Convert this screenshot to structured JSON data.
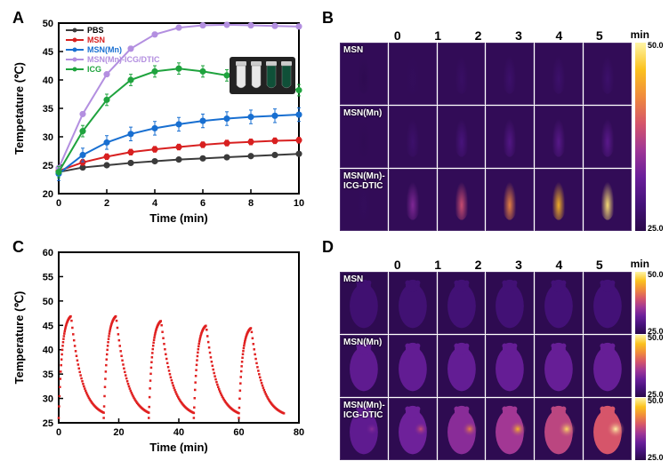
{
  "panelA": {
    "label": "A",
    "type": "line",
    "title": null,
    "xlabel": "Time (min)",
    "ylabel": "Tempetature (℃)",
    "xlim": [
      0,
      10
    ],
    "ylim": [
      20,
      50
    ],
    "xtick_step": 2,
    "ytick_step": 5,
    "label_fontsize": 13,
    "tick_fontsize": 11,
    "background_color": "#ffffff",
    "axis_color": "#000000",
    "axis_width": 2,
    "linewidth": 2,
    "marker": "circle",
    "marker_size": 4,
    "errorbar": true,
    "legend_pos": "upper-left-inside",
    "legend_fontsize": 9,
    "series": [
      {
        "name": "PBS",
        "color": "#3b3b3b",
        "x": [
          0,
          1,
          2,
          3,
          4,
          5,
          6,
          7,
          8,
          9,
          10
        ],
        "y": [
          23.8,
          24.6,
          25.0,
          25.4,
          25.7,
          26.0,
          26.2,
          26.4,
          26.6,
          26.8,
          27.0
        ],
        "err": 0.3
      },
      {
        "name": "MSN",
        "color": "#d82020",
        "x": [
          0,
          1,
          2,
          3,
          4,
          5,
          6,
          7,
          8,
          9,
          10
        ],
        "y": [
          24.0,
          25.5,
          26.5,
          27.3,
          27.8,
          28.2,
          28.6,
          28.9,
          29.1,
          29.3,
          29.4
        ],
        "err": 0.5
      },
      {
        "name": "MSN(Mn)",
        "color": "#186fd1",
        "x": [
          0,
          1,
          2,
          3,
          4,
          5,
          6,
          7,
          8,
          9,
          10
        ],
        "y": [
          23.5,
          26.8,
          29.0,
          30.5,
          31.5,
          32.2,
          32.8,
          33.2,
          33.5,
          33.7,
          33.9
        ],
        "err": 1.2
      },
      {
        "name": "MSN(Mn)-ICG/DTIC",
        "color": "#b38fe0",
        "x": [
          0,
          1,
          2,
          3,
          4,
          5,
          6,
          7,
          8,
          9,
          10
        ],
        "y": [
          24.5,
          34.0,
          41.0,
          45.5,
          48.0,
          49.2,
          49.6,
          49.7,
          49.6,
          49.5,
          49.4
        ],
        "err": 0.4
      },
      {
        "name": "ICG",
        "color": "#1fa33e",
        "x": [
          0,
          1,
          2,
          3,
          4,
          5,
          6,
          7,
          8,
          9,
          10
        ],
        "y": [
          23.8,
          31.0,
          36.5,
          40.0,
          41.5,
          42.0,
          41.5,
          40.8,
          40.0,
          39.0,
          38.2
        ],
        "err": 1.0
      }
    ],
    "inset": {
      "tubes": 4,
      "colors": [
        "#e8e8e8",
        "#e8e8e8",
        "#0f5038",
        "#0f5038"
      ],
      "bg": "#222222"
    }
  },
  "panelB": {
    "label": "B",
    "type": "thermal-image-grid",
    "col_labels": [
      "0",
      "1",
      "2",
      "3",
      "4",
      "5"
    ],
    "unit": "min",
    "rows": [
      "MSN",
      "MSN(Mn)",
      "MSN(Mn)-ICG-DTIC"
    ],
    "intensity": [
      [
        0.02,
        0.05,
        0.08,
        0.1,
        0.1,
        0.1
      ],
      [
        0.03,
        0.1,
        0.16,
        0.2,
        0.22,
        0.23
      ],
      [
        0.05,
        0.35,
        0.55,
        0.7,
        0.82,
        0.95
      ]
    ],
    "colorbar_min": 25.0,
    "colorbar_max": 50.0,
    "shape": "tube",
    "palette": [
      "#2a0a4a",
      "#45127a",
      "#6a1f9a",
      "#a03696",
      "#d6556a",
      "#f08b3c",
      "#fbc21e",
      "#fef5a6"
    ],
    "single_colorbar": true
  },
  "panelC": {
    "label": "C",
    "type": "line",
    "xlabel": "Time (min)",
    "ylabel": "Temperature (℃)",
    "xlim": [
      0,
      80
    ],
    "ylim": [
      25,
      60
    ],
    "xtick_step": 20,
    "ytick_step": 5,
    "label_fontsize": 13,
    "tick_fontsize": 11,
    "background_color": "#ffffff",
    "axis_color": "#000000",
    "axis_width": 2,
    "color": "#e02020",
    "marker": "square",
    "marker_size": 2.5,
    "n_cycles": 5,
    "cycle_period": 15,
    "peaks": [
      47.5,
      47.5,
      46.5,
      45.5,
      45.0
    ],
    "baseline": 26.0,
    "rise_min": 4,
    "fall_min": 11
  },
  "panelD": {
    "label": "D",
    "type": "thermal-image-grid",
    "col_labels": [
      "0",
      "1",
      "2",
      "3",
      "4",
      "5"
    ],
    "unit": "min",
    "rows": [
      "MSN",
      "MSN(Mn)",
      "MSN(Mn)-ICG-DTIC"
    ],
    "intensity": [
      [
        0.12,
        0.13,
        0.14,
        0.14,
        0.15,
        0.15
      ],
      [
        0.35,
        0.37,
        0.38,
        0.39,
        0.4,
        0.4
      ],
      [
        0.35,
        0.45,
        0.58,
        0.7,
        0.82,
        0.95
      ]
    ],
    "hotspot": [
      [
        0,
        0,
        0,
        0,
        0,
        0
      ],
      [
        0,
        0,
        0,
        0,
        0,
        0
      ],
      [
        0.1,
        0.35,
        0.55,
        0.75,
        0.9,
        1.0
      ]
    ],
    "colorbar_min": 25.0,
    "colorbar_max": 50.0,
    "shape": "mouse",
    "palette": [
      "#2a0a4a",
      "#45127a",
      "#6a1f9a",
      "#a03696",
      "#d6556a",
      "#f08b3c",
      "#fbc21e",
      "#fef5a6"
    ],
    "single_colorbar": false
  }
}
